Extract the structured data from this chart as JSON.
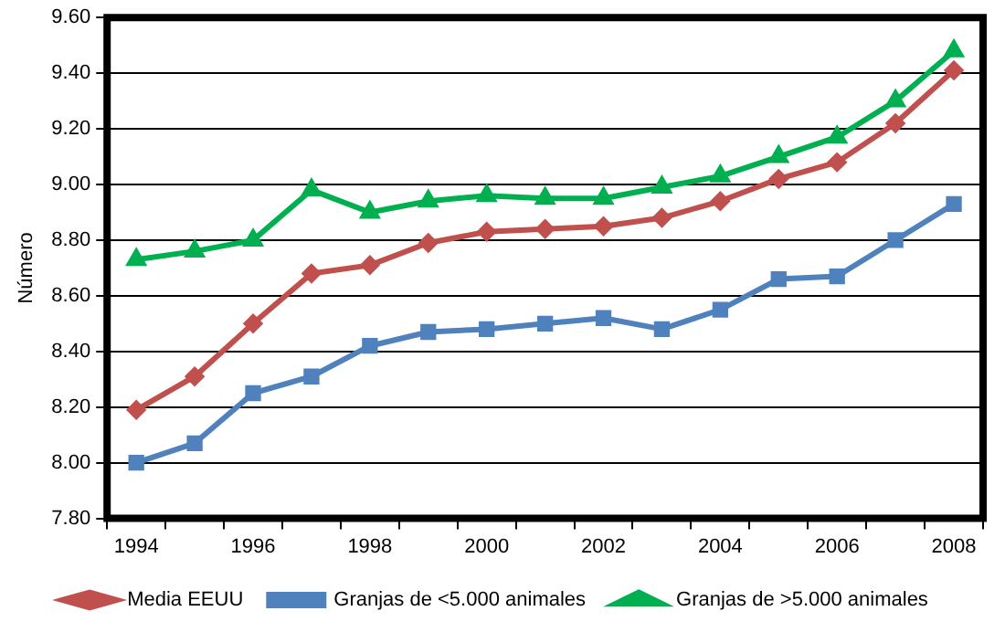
{
  "chart_data": {
    "type": "line",
    "ylabel": "Número",
    "categories": [
      "1994",
      null,
      "1996",
      null,
      "1998",
      null,
      "2000",
      null,
      "2002",
      null,
      "2004",
      null,
      "2006",
      null,
      "2008"
    ],
    "series": [
      {
        "name": "Media EEUU",
        "color": "#c0504d",
        "marker": "diamond",
        "values": [
          8.19,
          8.31,
          8.5,
          8.68,
          8.71,
          8.79,
          8.83,
          8.84,
          8.85,
          8.88,
          8.94,
          9.02,
          9.08,
          9.22,
          9.41
        ]
      },
      {
        "name": "Granjas de <5.000 animales",
        "color": "#4f81bd",
        "marker": "square",
        "values": [
          8.0,
          8.07,
          8.25,
          8.31,
          8.42,
          8.47,
          8.48,
          8.5,
          8.52,
          8.48,
          8.55,
          8.66,
          8.67,
          8.8,
          8.93
        ]
      },
      {
        "name": "Granjas de >5.000 animales",
        "color": "#00b050",
        "marker": "triangle",
        "values": [
          8.73,
          8.76,
          8.8,
          8.98,
          8.9,
          8.94,
          8.96,
          8.95,
          8.95,
          8.99,
          9.03,
          9.1,
          9.17,
          9.3,
          9.48
        ]
      }
    ],
    "ylim": [
      7.8,
      9.6
    ],
    "yticks": [
      {
        "value": 7.8,
        "label": "7.80"
      },
      {
        "value": 8.0,
        "label": "8.00"
      },
      {
        "value": 8.2,
        "label": "8.20"
      },
      {
        "value": 8.4,
        "label": "8.40"
      },
      {
        "value": 8.6,
        "label": "8.60"
      },
      {
        "value": 8.8,
        "label": "8.80"
      },
      {
        "value": 9.0,
        "label": "9.00"
      },
      {
        "value": 9.2,
        "label": "9.20"
      },
      {
        "value": 9.4,
        "label": "9.40"
      },
      {
        "value": 9.6,
        "label": "9.60"
      }
    ],
    "grid": "y",
    "legend": "bottom",
    "line_style": "solid"
  }
}
